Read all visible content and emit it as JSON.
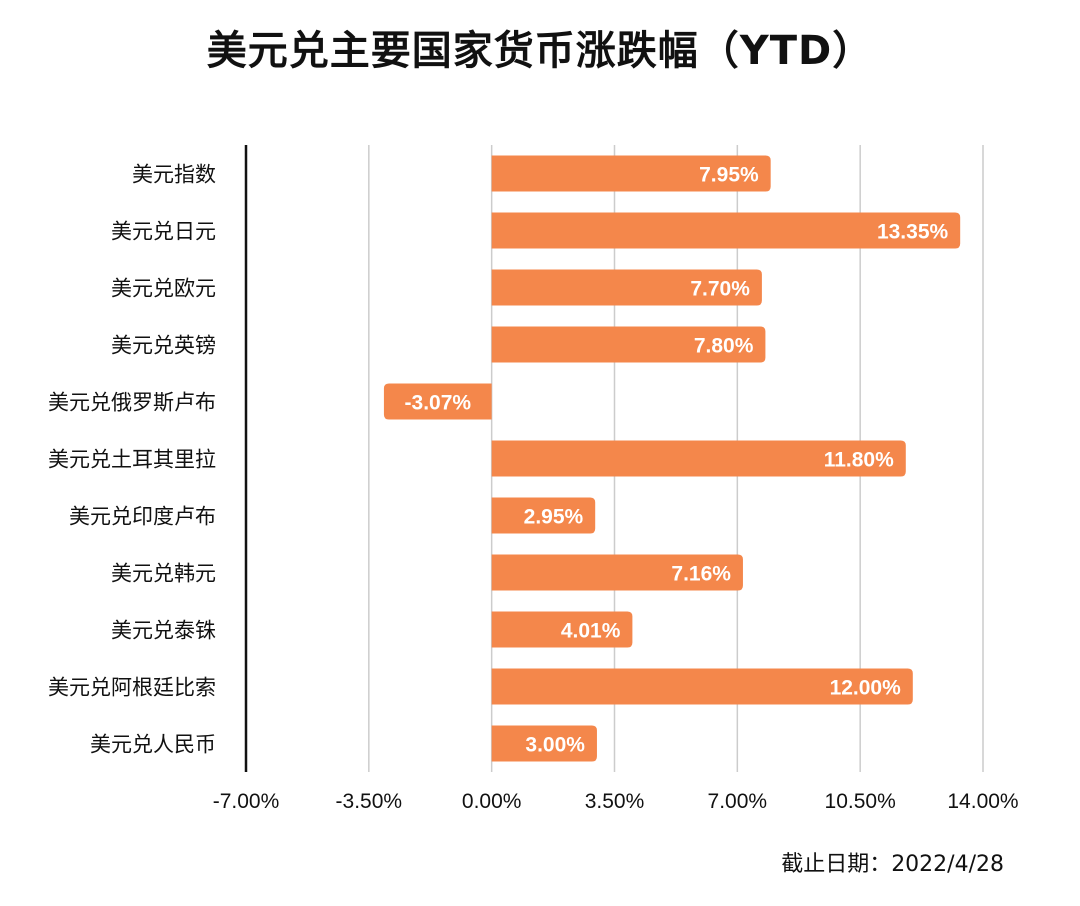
{
  "chart_data": {
    "type": "bar",
    "orientation": "horizontal",
    "title": "美元兑主要国家货币涨跌幅（YTD）",
    "xlabel": "",
    "ylabel": "",
    "categories": [
      "美元指数",
      "美元兑日元",
      "美元兑欧元",
      "美元兑英镑",
      "美元兑俄罗斯卢布",
      "美元兑土耳其里拉",
      "美元兑印度卢布",
      "美元兑韩元",
      "美元兑泰铢",
      "美元兑阿根廷比索",
      "美元兑人民币"
    ],
    "values": [
      7.95,
      13.35,
      7.7,
      7.8,
      -3.07,
      11.8,
      2.95,
      7.16,
      4.01,
      12.0,
      3.0
    ],
    "data_labels": [
      "7.95%",
      "13.35%",
      "7.70%",
      "7.80%",
      "-3.07%",
      "11.80%",
      "2.95%",
      "7.16%",
      "4.01%",
      "12.00%",
      "3.00%"
    ],
    "xlim": [
      -7,
      14
    ],
    "xticks": [
      -7,
      -3.5,
      0,
      3.5,
      7,
      10.5,
      14
    ],
    "xtick_labels": [
      "-7.00%",
      "-3.50%",
      "0.00%",
      "3.50%",
      "7.00%",
      "10.50%",
      "14.00%"
    ],
    "grid": true,
    "legend": "none",
    "bar_color": "#f4874b",
    "grid_color": "#cccccc",
    "axis_color": "#111111"
  },
  "footnote": "截止日期：2022/4/28"
}
